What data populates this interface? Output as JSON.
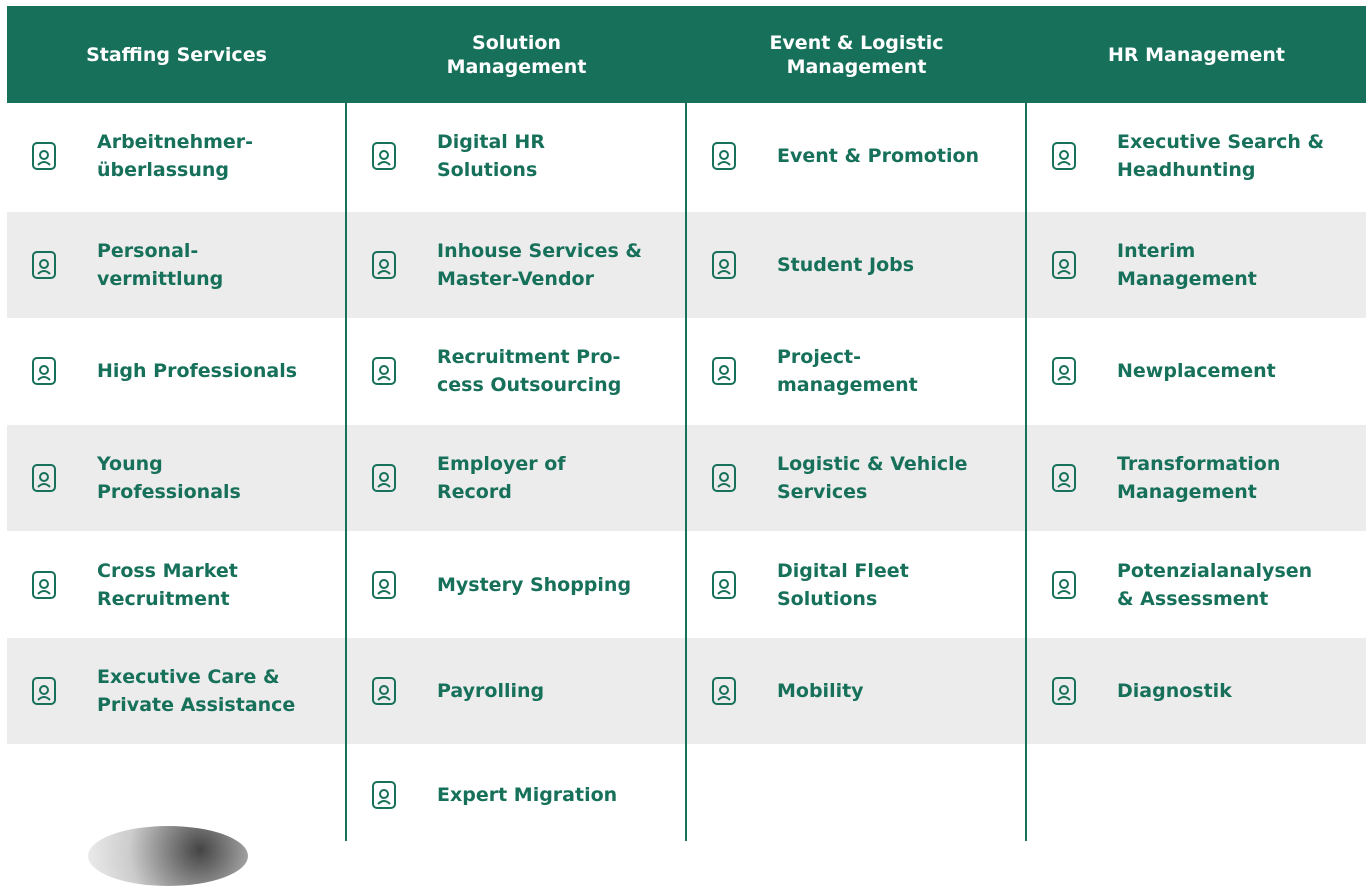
{
  "columns": [
    {
      "header": [
        "Staffing Services"
      ],
      "items": [
        [
          "Arbeitnehmer-",
          "überlassung"
        ],
        [
          "Personal-",
          "vermittlung"
        ],
        [
          "High Professionals"
        ],
        [
          "Young",
          "Professionals"
        ],
        [
          "Cross Market",
          "Recruitment"
        ],
        [
          "Executive Care &",
          "Private Assistance"
        ]
      ]
    },
    {
      "header": [
        "Solution",
        "Management"
      ],
      "items": [
        [
          "Digital HR",
          "Solutions"
        ],
        [
          "Inhouse Services &",
          "Master-Vendor"
        ],
        [
          "Recruitment Pro-",
          "cess Outsourcing"
        ],
        [
          "Employer of",
          "Record"
        ],
        [
          "Mystery Shopping"
        ],
        [
          "Payrolling"
        ],
        [
          "Expert Migration"
        ]
      ]
    },
    {
      "header": [
        "Event & Logistic",
        "Management"
      ],
      "items": [
        [
          "Event & Promotion"
        ],
        [
          "Student Jobs"
        ],
        [
          "Project-",
          "management"
        ],
        [
          "Logistic & Vehicle",
          "Services"
        ],
        [
          "Digital Fleet",
          "Solutions"
        ],
        [
          "Mobility"
        ]
      ]
    },
    {
      "header": [
        "HR Management"
      ],
      "items": [
        [
          "Executive Search &",
          "Headhunting"
        ],
        [
          "Interim",
          "Management"
        ],
        [
          "Newplacement"
        ],
        [
          "Transformation",
          "Management"
        ],
        [
          "Potenzialanalysen",
          "& Assessment"
        ],
        [
          "Diagnostik"
        ]
      ]
    }
  ]
}
